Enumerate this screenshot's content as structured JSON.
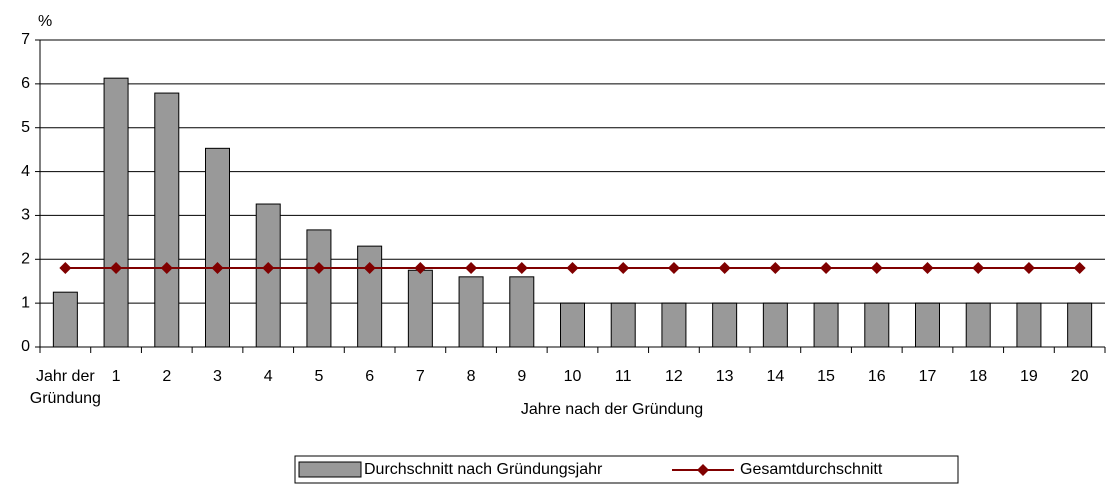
{
  "chart_data": {
    "type": "bar",
    "y_axis_label": "%",
    "x_axis_label": "Jahre nach der Gründung",
    "categories": [
      "Jahr der Gründung",
      "1",
      "2",
      "3",
      "4",
      "5",
      "6",
      "7",
      "8",
      "9",
      "10",
      "11",
      "12",
      "13",
      "14",
      "15",
      "16",
      "17",
      "18",
      "19",
      "20"
    ],
    "series": [
      {
        "name": "Durchschnitt nach Gründungsjahr",
        "type": "bar",
        "color": "#999999",
        "values": [
          1.25,
          6.13,
          5.79,
          4.53,
          3.26,
          2.67,
          2.3,
          1.75,
          1.6,
          1.6,
          1,
          1,
          1,
          1,
          1,
          1,
          1,
          1,
          1,
          1,
          1
        ]
      },
      {
        "name": "Gesamtdurchschnitt",
        "type": "line",
        "color": "#800000",
        "values": [
          1.8,
          1.8,
          1.8,
          1.8,
          1.8,
          1.8,
          1.8,
          1.8,
          1.8,
          1.8,
          1.8,
          1.8,
          1.8,
          1.8,
          1.8,
          1.8,
          1.8,
          1.8,
          1.8,
          1.8,
          1.8
        ]
      }
    ],
    "ylim": [
      0,
      7
    ],
    "yticks": [
      0,
      1,
      2,
      3,
      4,
      5,
      6,
      7
    ],
    "grid": true,
    "legend": "bottom"
  }
}
